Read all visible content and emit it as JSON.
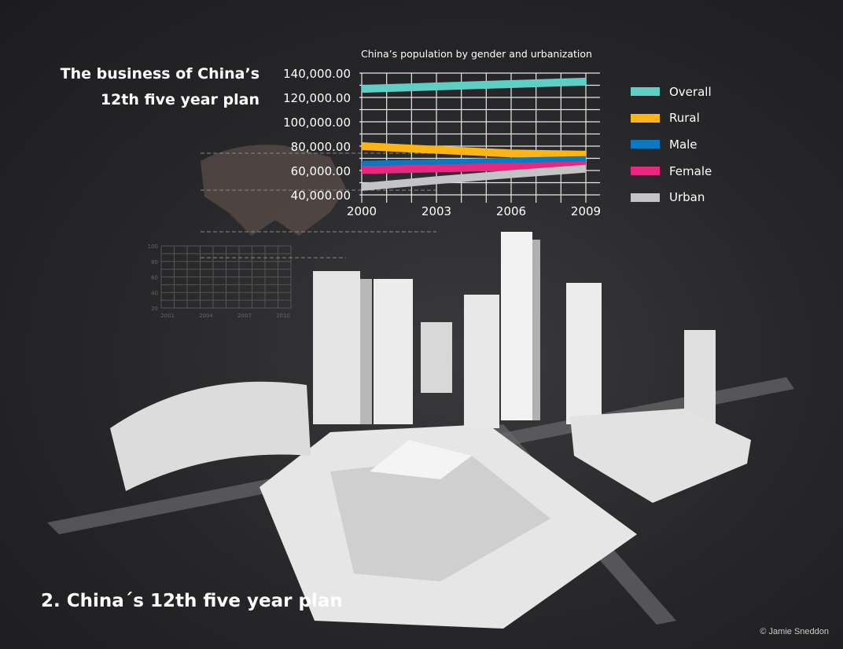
{
  "title": "The business of China’s 12th five year plan",
  "footer_title": "2. China´s  12th five year plan",
  "credit": "© Jamie Sneddon",
  "chart_data": [
    {
      "type": "line",
      "title": "China’s population by gender and urbanization",
      "x": [
        2000,
        2003,
        2006,
        2009
      ],
      "x_tick_labels": [
        "2000",
        "2003",
        "2006",
        "2009"
      ],
      "y_tick_labels": [
        "140,000.00",
        "120,000.00",
        "100,000.00",
        "80,000.00",
        "60,000.00",
        "40,000.00"
      ],
      "ylim": [
        40000,
        140000
      ],
      "grid": true,
      "legend": "right",
      "series": [
        {
          "name": "Overall",
          "color": "#5fcfc6",
          "values": [
            127000,
            129000,
            131000,
            133000
          ]
        },
        {
          "name": "Rural",
          "color": "#fdb515",
          "values": [
            80000,
            77000,
            74000,
            73000
          ]
        },
        {
          "name": "Male",
          "color": "#0b78c2",
          "values": [
            64700,
            66000,
            67300,
            68600
          ]
        },
        {
          "name": "Female",
          "color": "#e8287e",
          "values": [
            60400,
            61700,
            63000,
            64300
          ]
        },
        {
          "name": "Urban",
          "color": "#c4c4c6",
          "values": [
            46500,
            52000,
            57000,
            61500
          ]
        }
      ]
    },
    {
      "type": "line",
      "x_tick_labels": [
        "2001",
        "2004",
        "2007",
        "2010"
      ],
      "y_tick_labels": [
        "100",
        "80",
        "60",
        "40",
        "20"
      ],
      "ylim": [
        20,
        100
      ],
      "grid": true,
      "series": []
    }
  ]
}
